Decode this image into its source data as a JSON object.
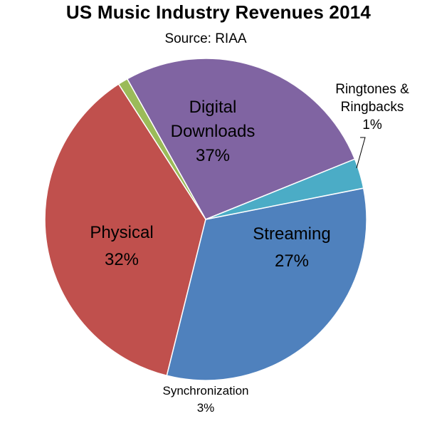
{
  "title": "US Music Industry Revenues 2014",
  "subtitle": "Source: RIAA",
  "chart_data": {
    "type": "pie",
    "title": "US Music Industry Revenues 2014",
    "subtitle": "Source: RIAA",
    "start_angle_deg": 22,
    "direction": "counterclockwise",
    "slices": [
      {
        "label": "Streaming",
        "label_lines": [
          "Streaming"
        ],
        "value": 27,
        "value_label": "27%",
        "color": "#8064A2"
      },
      {
        "label": "Ringtones & Ringbacks",
        "label_lines": [
          "Ringtones &",
          "Ringbacks"
        ],
        "value": 1,
        "value_label": "1%",
        "color": "#9BBB59"
      },
      {
        "label": "Digital Downloads",
        "label_lines": [
          "Digital",
          "Downloads"
        ],
        "value": 37,
        "value_label": "37%",
        "color": "#C0504D"
      },
      {
        "label": "Physical",
        "label_lines": [
          "Physical"
        ],
        "value": 32,
        "value_label": "32%",
        "color": "#4F81BD"
      },
      {
        "label": "Synchronization",
        "label_lines": [
          "Synchronization"
        ],
        "value": 3,
        "value_label": "3%",
        "color": "#4BACC6"
      }
    ]
  }
}
